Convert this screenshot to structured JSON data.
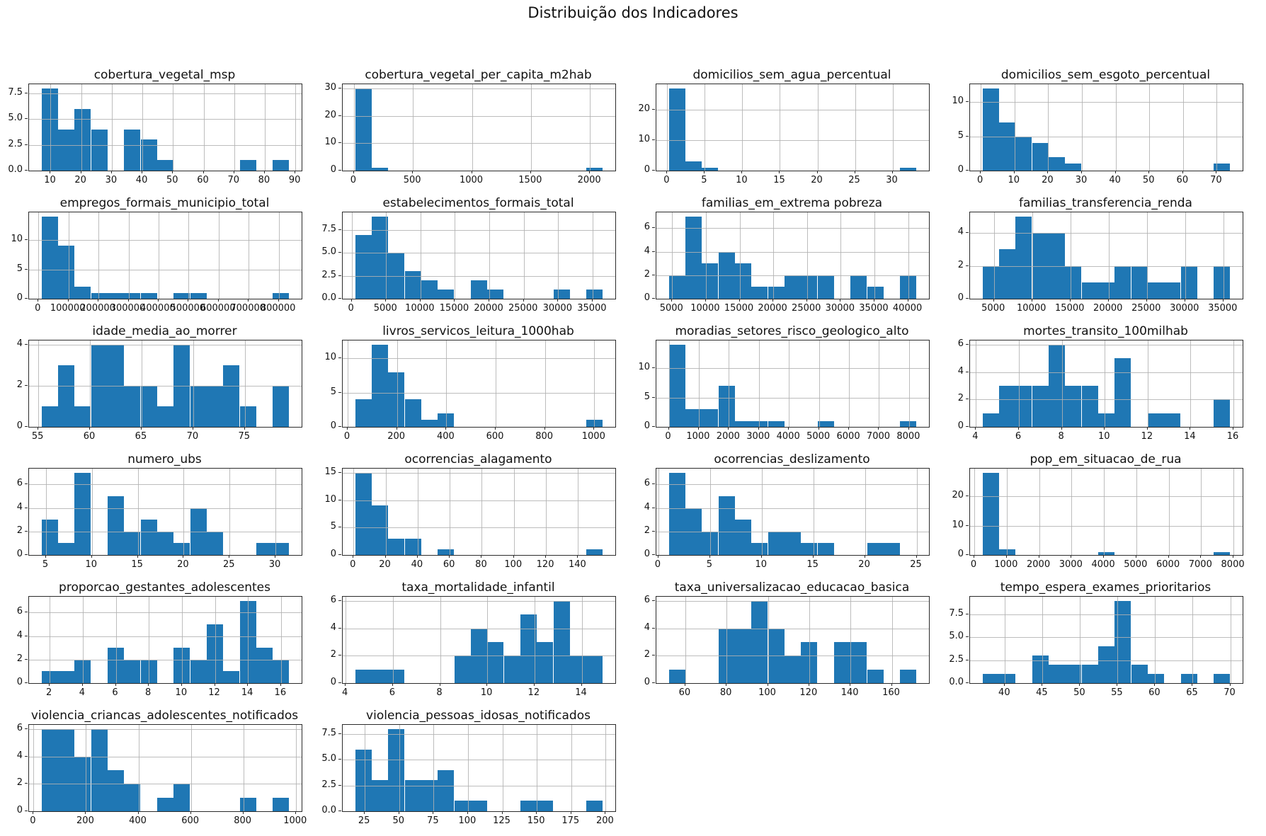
{
  "figure": {
    "suptitle": "Distribuição dos Indicadores",
    "background_color": "#ffffff",
    "bar_color": "#1f77b4",
    "grid_color": "#b2b2b2",
    "grid": "on",
    "legend": "none"
  },
  "chart_data": [
    {
      "type": "histogram",
      "title": "cobertura_vegetal_msp",
      "bin_start": 7,
      "bin_width": 5.4,
      "counts": [
        8,
        4,
        6,
        4,
        0,
        4,
        3,
        1,
        0,
        0,
        0,
        0,
        1,
        0,
        1
      ],
      "xticks": [
        10,
        20,
        30,
        40,
        50,
        60,
        70,
        80,
        90
      ],
      "xtick_labels": [
        "10",
        "20",
        "30",
        "40",
        "50",
        "60",
        "70",
        "80",
        "90"
      ],
      "yticks": [
        0,
        2.5,
        5,
        7.5
      ],
      "ytick_labels": [
        "0.0",
        "2.5",
        "5.0",
        "7.5"
      ]
    },
    {
      "type": "histogram",
      "title": "cobertura_vegetal_per_capita_m2hab",
      "bin_start": 10,
      "bin_width": 140,
      "counts": [
        30,
        1,
        0,
        0,
        0,
        0,
        0,
        0,
        0,
        0,
        0,
        0,
        0,
        0,
        1
      ],
      "xticks": [
        0,
        500,
        1000,
        1500,
        2000
      ],
      "xtick_labels": [
        "0",
        "500",
        "1000",
        "1500",
        "2000"
      ],
      "yticks": [
        0,
        10,
        20,
        30
      ],
      "ytick_labels": [
        "0",
        "10",
        "20",
        "30"
      ]
    },
    {
      "type": "histogram",
      "title": "domicilios_sem_agua_percentual",
      "bin_start": 0.2,
      "bin_width": 2.2,
      "counts": [
        27,
        3,
        1,
        0,
        0,
        0,
        0,
        0,
        0,
        0,
        0,
        0,
        0,
        0,
        1
      ],
      "xticks": [
        0,
        5,
        10,
        15,
        20,
        25,
        30
      ],
      "xtick_labels": [
        "0",
        "5",
        "10",
        "15",
        "20",
        "25",
        "30"
      ],
      "yticks": [
        0,
        10,
        20
      ],
      "ytick_labels": [
        "0",
        "10",
        "20"
      ]
    },
    {
      "type": "histogram",
      "title": "domicilios_sem_esgoto_percentual",
      "bin_start": 0.5,
      "bin_width": 4.9,
      "counts": [
        12,
        7,
        5,
        4,
        2,
        1,
        0,
        0,
        0,
        0,
        0,
        0,
        0,
        0,
        1
      ],
      "xticks": [
        0,
        10,
        20,
        30,
        40,
        50,
        60,
        70
      ],
      "xtick_labels": [
        "0",
        "10",
        "20",
        "30",
        "40",
        "50",
        "60",
        "70"
      ],
      "yticks": [
        0,
        5,
        10
      ],
      "ytick_labels": [
        "0",
        "5",
        "10"
      ]
    },
    {
      "type": "histogram",
      "title": "empregos_formais_municipio_total",
      "bin_start": 10000,
      "bin_width": 55000,
      "counts": [
        14,
        9,
        2,
        1,
        1,
        1,
        1,
        0,
        1,
        1,
        0,
        0,
        0,
        0,
        1
      ],
      "xticks": [
        0,
        100000,
        200000,
        300000,
        400000,
        500000,
        600000,
        700000,
        800000
      ],
      "xtick_labels": [
        "0",
        "100000",
        "200000",
        "300000",
        "400000",
        "500000",
        "600000",
        "700000",
        "800000"
      ],
      "yticks": [
        0,
        5,
        10
      ],
      "ytick_labels": [
        "0",
        "5",
        "10"
      ]
    },
    {
      "type": "histogram",
      "title": "estabelecimentos_formais_total",
      "bin_start": 500,
      "bin_width": 2400,
      "counts": [
        7,
        9,
        5,
        3,
        2,
        1,
        0,
        2,
        1,
        0,
        0,
        0,
        1,
        0,
        1
      ],
      "xticks": [
        0,
        5000,
        10000,
        15000,
        20000,
        25000,
        30000,
        35000
      ],
      "xtick_labels": [
        "0",
        "5000",
        "10000",
        "15000",
        "20000",
        "25000",
        "30000",
        "35000"
      ],
      "yticks": [
        0,
        2.5,
        5,
        7.5
      ],
      "ytick_labels": [
        "0.0",
        "2.5",
        "5.0",
        "7.5"
      ]
    },
    {
      "type": "histogram",
      "title": "familias_em_extrema pobreza",
      "bin_start": 4500,
      "bin_width": 2450,
      "counts": [
        2,
        7,
        3,
        4,
        3,
        1,
        1,
        2,
        2,
        2,
        0,
        2,
        1,
        0,
        2
      ],
      "xticks": [
        5000,
        10000,
        15000,
        20000,
        25000,
        30000,
        35000,
        40000
      ],
      "xtick_labels": [
        "5000",
        "10000",
        "15000",
        "20000",
        "25000",
        "30000",
        "35000",
        "40000"
      ],
      "yticks": [
        0,
        2,
        4,
        6
      ],
      "ytick_labels": [
        "0",
        "2",
        "4",
        "6"
      ]
    },
    {
      "type": "histogram",
      "title": "familias_transferencia_renda",
      "bin_start": 3500,
      "bin_width": 2160,
      "counts": [
        2,
        3,
        5,
        4,
        4,
        2,
        1,
        1,
        2,
        2,
        1,
        1,
        2,
        0,
        2
      ],
      "xticks": [
        5000,
        10000,
        15000,
        20000,
        25000,
        30000,
        35000
      ],
      "xtick_labels": [
        "5000",
        "10000",
        "15000",
        "20000",
        "25000",
        "30000",
        "35000"
      ],
      "yticks": [
        0,
        2,
        4
      ],
      "ytick_labels": [
        "0",
        "2",
        "4"
      ]
    },
    {
      "type": "histogram",
      "title": "idade_media_ao_morrer",
      "bin_start": 55.3,
      "bin_width": 1.6,
      "counts": [
        1,
        3,
        1,
        4,
        4,
        2,
        2,
        1,
        4,
        2,
        2,
        3,
        1,
        0,
        2
      ],
      "xticks": [
        55,
        60,
        65,
        70,
        75
      ],
      "xtick_labels": [
        "55",
        "60",
        "65",
        "70",
        "75"
      ],
      "yticks": [
        0,
        2,
        4
      ],
      "ytick_labels": [
        "0",
        "2",
        "4"
      ]
    },
    {
      "type": "histogram",
      "title": "livros_servicos_leitura_1000hab",
      "bin_start": 30,
      "bin_width": 67,
      "counts": [
        4,
        12,
        8,
        4,
        1,
        2,
        0,
        0,
        0,
        0,
        0,
        0,
        0,
        0,
        1
      ],
      "xticks": [
        0,
        200,
        400,
        600,
        800,
        1000
      ],
      "xtick_labels": [
        "0",
        "200",
        "400",
        "600",
        "800",
        "1000"
      ],
      "yticks": [
        0,
        5,
        10
      ],
      "ytick_labels": [
        "0",
        "5",
        "10"
      ]
    },
    {
      "type": "histogram",
      "title": "moradias_setores_risco_geologico_alto",
      "bin_start": 0,
      "bin_width": 550,
      "counts": [
        14,
        3,
        3,
        7,
        1,
        1,
        1,
        0,
        0,
        1,
        0,
        0,
        0,
        0,
        1
      ],
      "xticks": [
        0,
        1000,
        2000,
        3000,
        4000,
        5000,
        6000,
        7000,
        8000
      ],
      "xtick_labels": [
        "0",
        "1000",
        "2000",
        "3000",
        "4000",
        "5000",
        "6000",
        "7000",
        "8000"
      ],
      "yticks": [
        0,
        5,
        10
      ],
      "ytick_labels": [
        "0",
        "5",
        "10"
      ]
    },
    {
      "type": "histogram",
      "title": "mortes_transito_100milhab",
      "bin_start": 4.3,
      "bin_width": 0.77,
      "counts": [
        1,
        3,
        3,
        3,
        6,
        3,
        3,
        1,
        5,
        0,
        1,
        1,
        0,
        0,
        2
      ],
      "xticks": [
        4,
        6,
        8,
        10,
        12,
        14,
        16
      ],
      "xtick_labels": [
        "4",
        "6",
        "8",
        "10",
        "12",
        "14",
        "16"
      ],
      "yticks": [
        0,
        2,
        4,
        6
      ],
      "ytick_labels": [
        "0",
        "2",
        "4",
        "6"
      ]
    },
    {
      "type": "histogram",
      "title": "numero_ubs",
      "bin_start": 4.5,
      "bin_width": 1.8,
      "counts": [
        3,
        1,
        7,
        0,
        5,
        2,
        3,
        2,
        1,
        4,
        2,
        0,
        0,
        1,
        1
      ],
      "xticks": [
        5,
        10,
        15,
        20,
        25,
        30
      ],
      "xtick_labels": [
        "5",
        "10",
        "15",
        "20",
        "25",
        "30"
      ],
      "yticks": [
        0,
        2,
        4,
        6
      ],
      "ytick_labels": [
        "0",
        "2",
        "4",
        "6"
      ]
    },
    {
      "type": "histogram",
      "title": "ocorrencias_alagamento",
      "bin_start": 1,
      "bin_width": 10.3,
      "counts": [
        15,
        9,
        3,
        3,
        0,
        1,
        0,
        0,
        0,
        0,
        0,
        0,
        0,
        0,
        1
      ],
      "xticks": [
        0,
        20,
        40,
        60,
        80,
        100,
        120,
        140
      ],
      "xtick_labels": [
        "0",
        "20",
        "40",
        "60",
        "80",
        "100",
        "120",
        "140"
      ],
      "yticks": [
        0,
        5,
        10,
        15
      ],
      "ytick_labels": [
        "0",
        "5",
        "10",
        "15"
      ]
    },
    {
      "type": "histogram",
      "title": "ocorrencias_deslizamento",
      "bin_start": 1,
      "bin_width": 1.6,
      "counts": [
        7,
        4,
        2,
        5,
        3,
        1,
        2,
        2,
        1,
        1,
        0,
        0,
        1,
        1,
        0
      ],
      "xticks": [
        0,
        5,
        10,
        15,
        20,
        25
      ],
      "xtick_labels": [
        "0",
        "5",
        "10",
        "15",
        "20",
        "25"
      ],
      "yticks": [
        0,
        2,
        4,
        6
      ],
      "ytick_labels": [
        "0",
        "2",
        "4",
        "6"
      ]
    },
    {
      "type": "histogram",
      "title": "pop_em_situacao_de_rua",
      "bin_start": 250,
      "bin_width": 510,
      "counts": [
        28,
        2,
        0,
        0,
        0,
        0,
        0,
        1,
        0,
        0,
        0,
        0,
        0,
        0,
        1
      ],
      "xticks": [
        0,
        1000,
        2000,
        3000,
        4000,
        5000,
        6000,
        7000,
        8000
      ],
      "xtick_labels": [
        "0",
        "1000",
        "2000",
        "3000",
        "4000",
        "5000",
        "6000",
        "7000",
        "8000"
      ],
      "yticks": [
        0,
        10,
        20
      ],
      "ytick_labels": [
        "0",
        "10",
        "20"
      ]
    },
    {
      "type": "histogram",
      "title": "proporcao_gestantes_adolescentes",
      "bin_start": 1.5,
      "bin_width": 1,
      "counts": [
        1,
        1,
        2,
        0,
        3,
        2,
        2,
        0,
        3,
        2,
        5,
        1,
        7,
        3,
        2
      ],
      "xticks": [
        2,
        4,
        6,
        8,
        10,
        12,
        14,
        16
      ],
      "xtick_labels": [
        "2",
        "4",
        "6",
        "8",
        "10",
        "12",
        "14",
        "16"
      ],
      "yticks": [
        0,
        2,
        4,
        6
      ],
      "ytick_labels": [
        "0",
        "2",
        "4",
        "6"
      ]
    },
    {
      "type": "histogram",
      "title": "taxa_mortalidade_infantil",
      "bin_start": 4.4,
      "bin_width": 0.7,
      "counts": [
        1,
        1,
        1,
        0,
        0,
        0,
        2,
        4,
        3,
        2,
        5,
        3,
        6,
        2,
        2
      ],
      "xticks": [
        4,
        6,
        8,
        10,
        12,
        14
      ],
      "xtick_labels": [
        "4",
        "6",
        "8",
        "10",
        "12",
        "14"
      ],
      "yticks": [
        0,
        2,
        4,
        6
      ],
      "ytick_labels": [
        "0",
        "2",
        "4",
        "6"
      ]
    },
    {
      "type": "histogram",
      "title": "taxa_universalizacao_educacao_basica",
      "bin_start": 52,
      "bin_width": 8,
      "counts": [
        1,
        0,
        0,
        4,
        4,
        6,
        4,
        2,
        3,
        0,
        3,
        3,
        1,
        0,
        1
      ],
      "xticks": [
        60,
        80,
        100,
        120,
        140,
        160
      ],
      "xtick_labels": [
        "60",
        "80",
        "100",
        "120",
        "140",
        "160"
      ],
      "yticks": [
        0,
        2,
        4,
        6
      ],
      "ytick_labels": [
        "0",
        "2",
        "4",
        "6"
      ]
    },
    {
      "type": "histogram",
      "title": "tempo_espera_exames_prioritarios",
      "bin_start": 37,
      "bin_width": 2.2,
      "counts": [
        1,
        1,
        0,
        3,
        2,
        2,
        2,
        4,
        9,
        2,
        1,
        0,
        1,
        0,
        1
      ],
      "xticks": [
        40,
        45,
        50,
        55,
        60,
        65,
        70
      ],
      "xtick_labels": [
        "40",
        "45",
        "50",
        "55",
        "60",
        "65",
        "70"
      ],
      "yticks": [
        0,
        2.5,
        5,
        7.5
      ],
      "ytick_labels": [
        "0.0",
        "2.5",
        "5.0",
        "7.5"
      ]
    },
    {
      "type": "histogram",
      "title": "violencia_criancas_adolescentes_notificados",
      "bin_start": 30,
      "bin_width": 63,
      "counts": [
        6,
        6,
        4,
        6,
        3,
        2,
        0,
        1,
        2,
        0,
        0,
        0,
        1,
        0,
        1
      ],
      "xticks": [
        0,
        200,
        400,
        600,
        800,
        1000
      ],
      "xtick_labels": [
        "0",
        "200",
        "400",
        "600",
        "800",
        "1000"
      ],
      "yticks": [
        0,
        2,
        4,
        6
      ],
      "ytick_labels": [
        "0",
        "2",
        "4",
        "6"
      ]
    },
    {
      "type": "histogram",
      "title": "violencia_pessoas_idosas_notificados",
      "bin_start": 18,
      "bin_width": 12,
      "counts": [
        6,
        3,
        8,
        3,
        3,
        4,
        1,
        1,
        0,
        0,
        1,
        1,
        0,
        0,
        1
      ],
      "xticks": [
        25,
        50,
        75,
        100,
        125,
        150,
        175,
        200
      ],
      "xtick_labels": [
        "25",
        "50",
        "75",
        "100",
        "125",
        "150",
        "175",
        "200"
      ],
      "yticks": [
        0,
        2.5,
        5,
        7.5
      ],
      "ytick_labels": [
        "0.0",
        "2.5",
        "5.0",
        "7.5"
      ]
    }
  ]
}
